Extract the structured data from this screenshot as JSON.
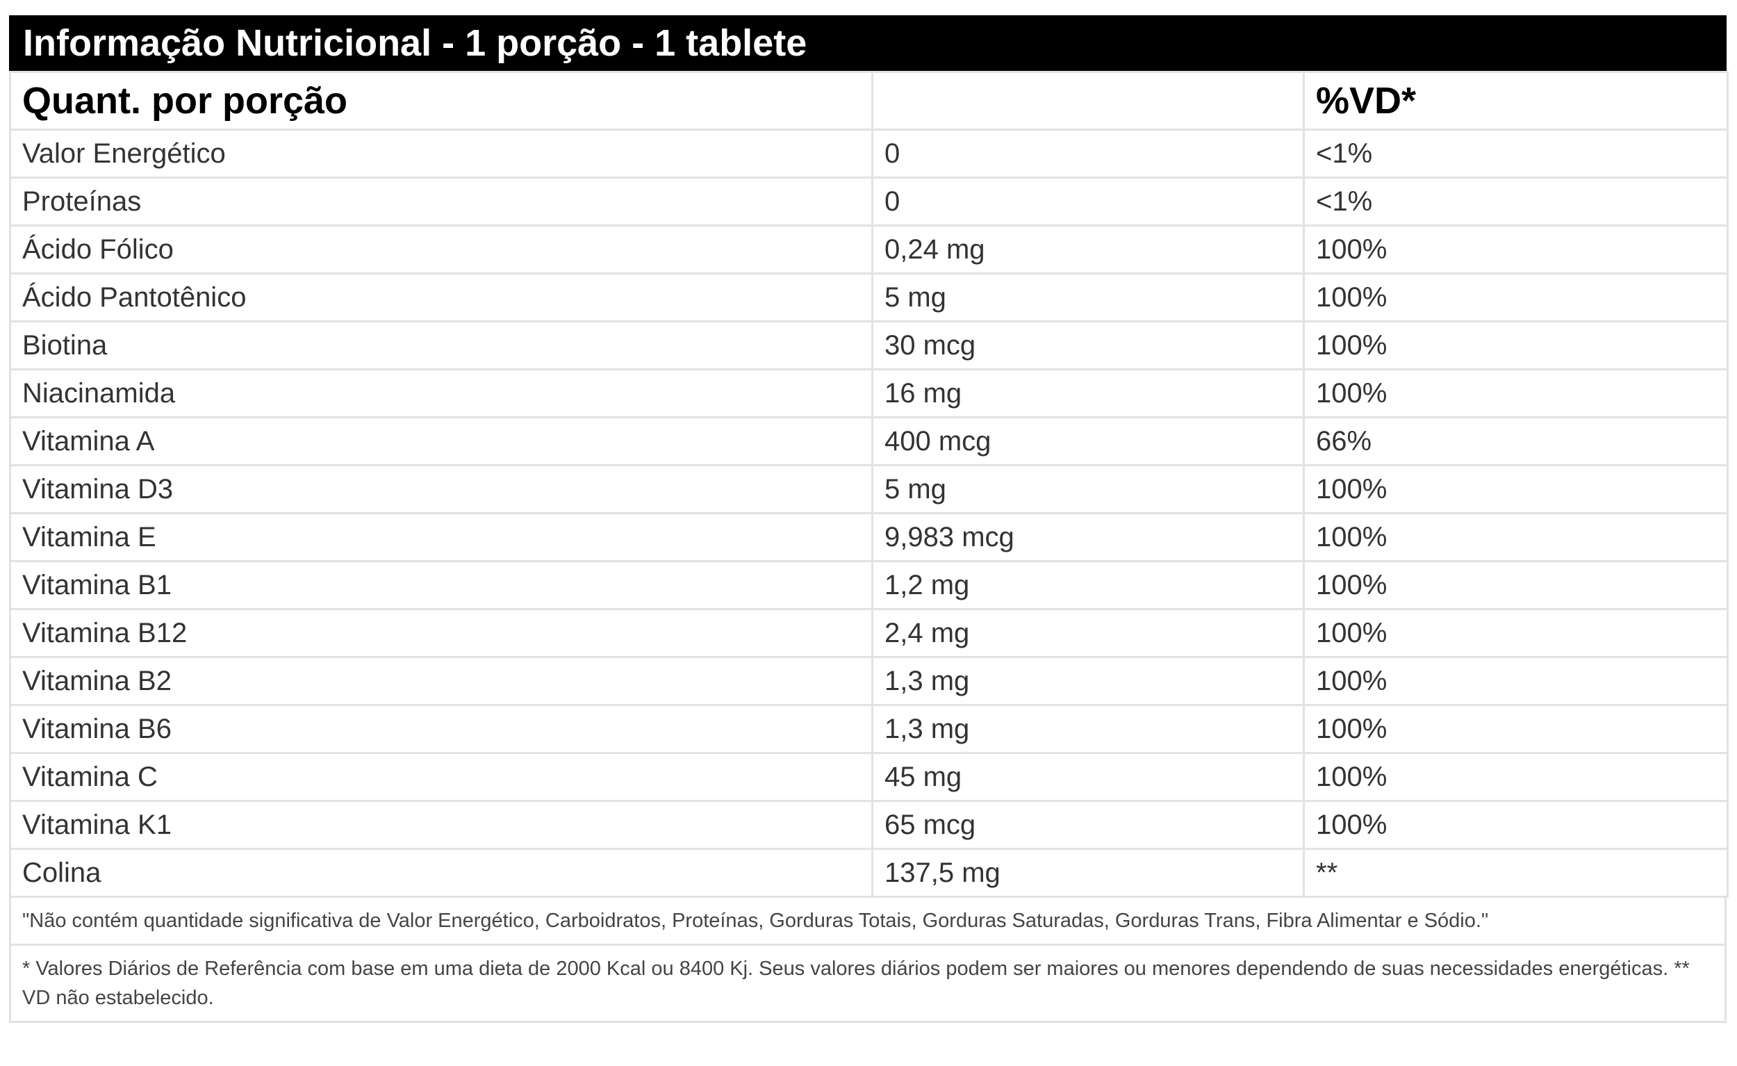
{
  "header": {
    "title": "Informação Nutricional - 1 porção - 1 tablete"
  },
  "table": {
    "columns": [
      "Quant. por porção",
      "%VD*"
    ],
    "rows": [
      [
        "Valor Energético",
        "0",
        "<1%"
      ],
      [
        "Proteínas",
        "0",
        "<1%"
      ],
      [
        "Ácido Fólico",
        "0,24 mg",
        "100%"
      ],
      [
        "Ácido Pantotênico",
        "5 mg",
        "100%"
      ],
      [
        "Biotina",
        "30 mcg",
        "100%"
      ],
      [
        "Niacinamida",
        "16 mg",
        "100%"
      ],
      [
        "Vitamina A",
        "400 mcg",
        "66%"
      ],
      [
        "Vitamina D3",
        "5 mg",
        "100%"
      ],
      [
        "Vitamina E",
        "9,983 mcg",
        "100%"
      ],
      [
        "Vitamina B1",
        "1,2 mg",
        "100%"
      ],
      [
        "Vitamina B12",
        "2,4 mg",
        "100%"
      ],
      [
        "Vitamina B2",
        "1,3 mg",
        "100%"
      ],
      [
        "Vitamina B6",
        "1,3 mg",
        "100%"
      ],
      [
        "Vitamina C",
        "45 mg",
        "100%"
      ],
      [
        "Vitamina K1",
        "65 mcg",
        "100%"
      ],
      [
        "Colina",
        "137,5 mg",
        "**"
      ]
    ]
  },
  "notes": [
    "\"Não contém quantidade significativa de Valor Energético, Carboidratos, Proteínas, Gorduras Totais, Gorduras Saturadas, Gorduras Trans, Fibra Alimentar e Sódio.\"",
    "* Valores Diários de Referência com base em uma dieta de 2000 Kcal ou 8400 Kj. Seus valores diários podem ser maiores ou menores dependendo de suas necessidades energéticas. ** VD não estabelecido."
  ]
}
